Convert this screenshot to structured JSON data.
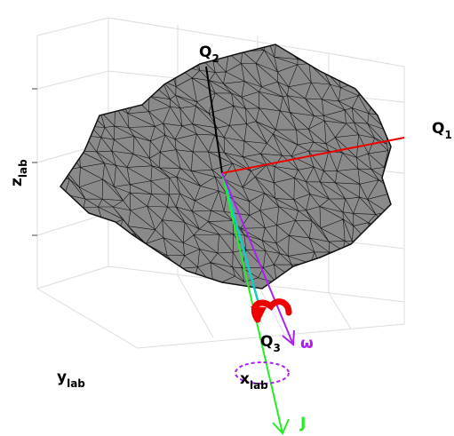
{
  "labels": {
    "q1": {
      "main": "Q",
      "sub": "1"
    },
    "q2": {
      "main": "Q",
      "sub": "2"
    },
    "q3": {
      "main": "Q",
      "sub": "3"
    },
    "omega": "ω",
    "j": "J",
    "x_axis": {
      "main": "x",
      "sub": "lab"
    },
    "y_axis": {
      "main": "y",
      "sub": "lab"
    },
    "z_axis": {
      "main": "z",
      "sub": "lab"
    }
  }
}
